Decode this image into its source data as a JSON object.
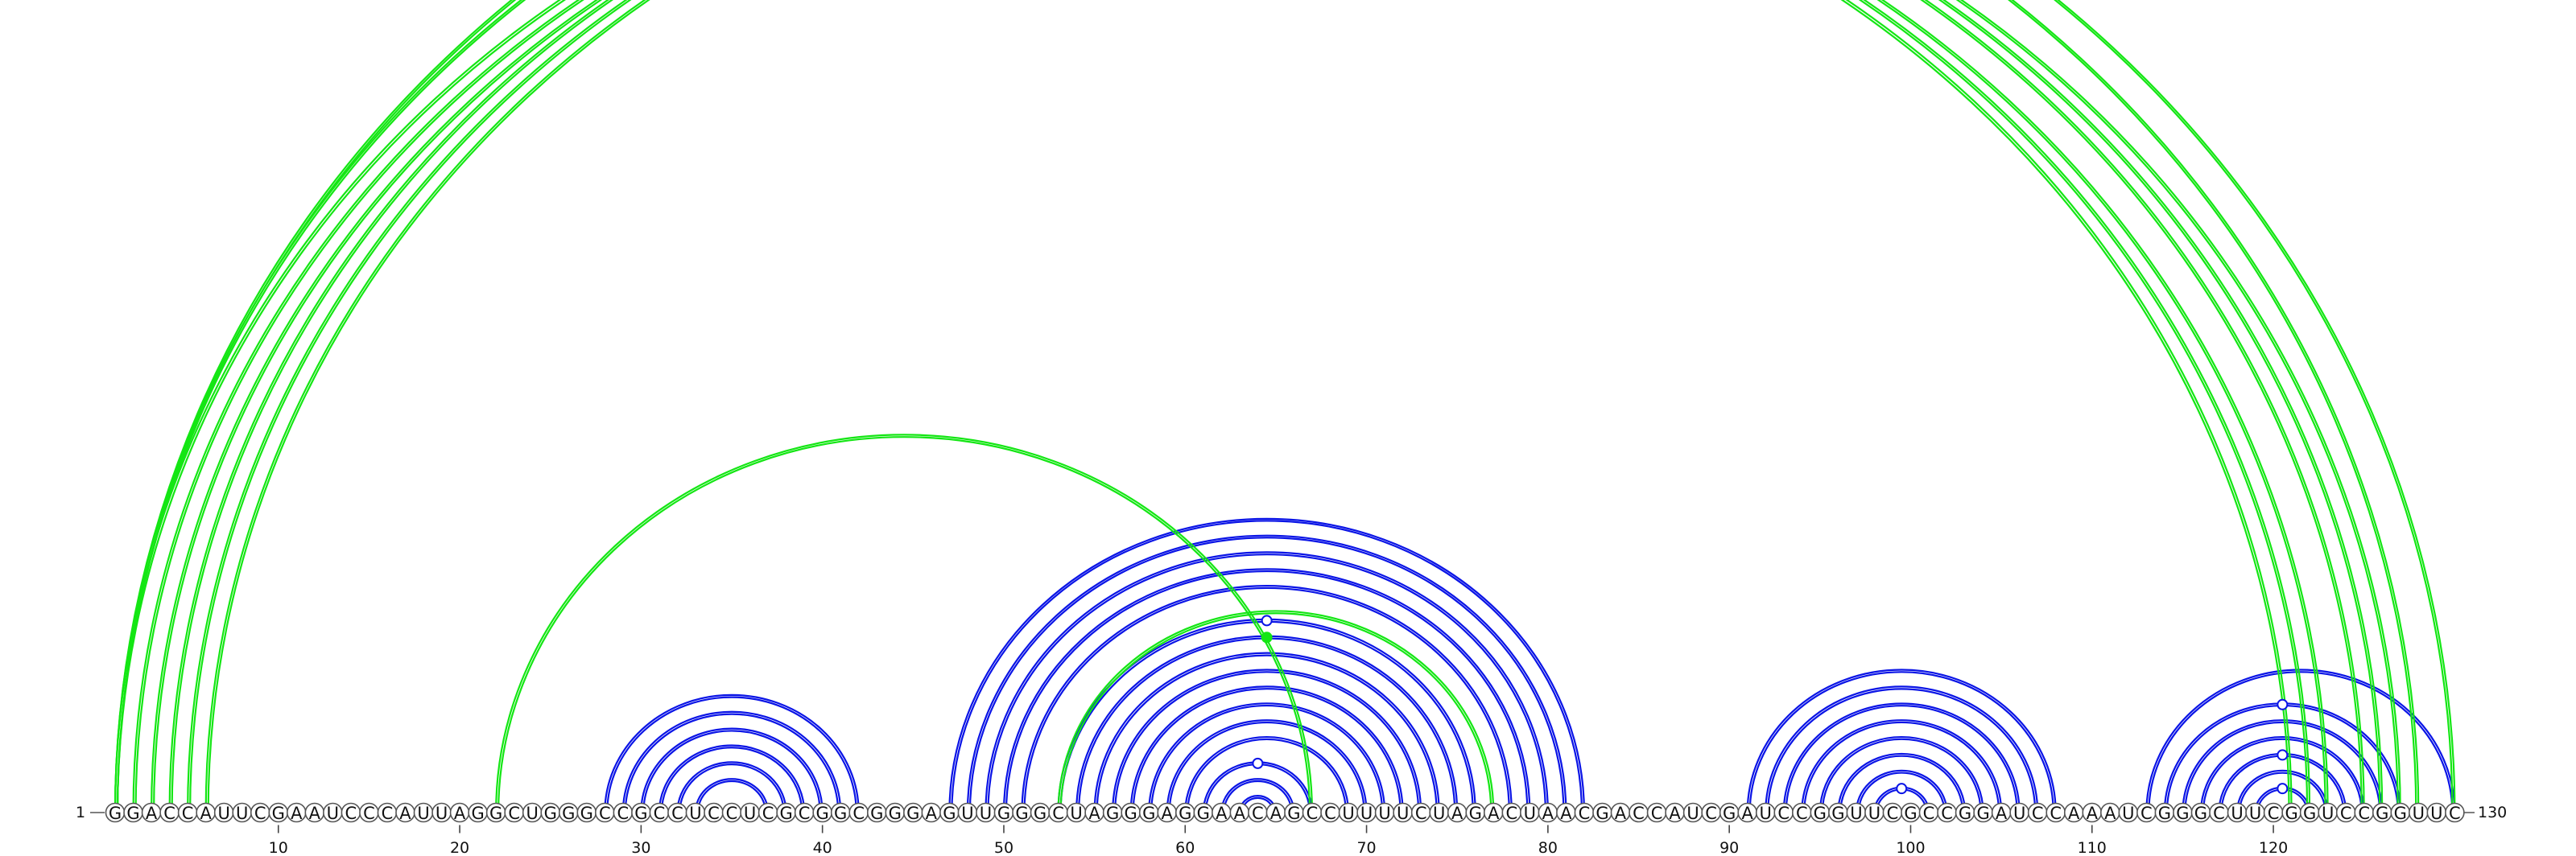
{
  "sequence": "GGACCAUUCGAAUCCCAUUAGGCUGGGCCGCCUCCUCGCGGCGGGAGUUGGGCUAGGGAGGAACAGCCUUUUCUAGACUAACGACCAUCGAUCCGGUUCGCCGGAUCCAAAUCGGGCUUCGGUCCGGUUC",
  "start_label": "1",
  "end_label": "130",
  "ticks": [
    10,
    20,
    30,
    40,
    50,
    60,
    70,
    80,
    90,
    100,
    110,
    120
  ],
  "colors": {
    "secondary": "#0a14e6",
    "tertiary": "#14e614"
  },
  "chart_data": {
    "type": "arc-diagram",
    "title": "",
    "length": 130,
    "pairs": [
      {
        "i": 28,
        "j": 42,
        "kind": "secondary"
      },
      {
        "i": 29,
        "j": 41,
        "kind": "secondary"
      },
      {
        "i": 30,
        "j": 40,
        "kind": "secondary"
      },
      {
        "i": 31,
        "j": 39,
        "kind": "secondary"
      },
      {
        "i": 32,
        "j": 38,
        "kind": "secondary"
      },
      {
        "i": 33,
        "j": 37,
        "kind": "secondary"
      },
      {
        "i": 47,
        "j": 82,
        "kind": "secondary"
      },
      {
        "i": 48,
        "j": 81,
        "kind": "secondary"
      },
      {
        "i": 49,
        "j": 80,
        "kind": "secondary"
      },
      {
        "i": 50,
        "j": 79,
        "kind": "secondary"
      },
      {
        "i": 51,
        "j": 78,
        "kind": "secondary"
      },
      {
        "i": 53,
        "j": 76,
        "kind": "secondary"
      },
      {
        "i": 54,
        "j": 75,
        "kind": "secondary"
      },
      {
        "i": 55,
        "j": 74,
        "kind": "secondary"
      },
      {
        "i": 56,
        "j": 73,
        "kind": "secondary"
      },
      {
        "i": 57,
        "j": 72,
        "kind": "secondary"
      },
      {
        "i": 58,
        "j": 71,
        "kind": "secondary"
      },
      {
        "i": 59,
        "j": 70,
        "kind": "secondary"
      },
      {
        "i": 60,
        "j": 69,
        "kind": "secondary"
      },
      {
        "i": 61,
        "j": 67,
        "kind": "secondary"
      },
      {
        "i": 62,
        "j": 66,
        "kind": "secondary"
      },
      {
        "i": 63,
        "j": 65,
        "kind": "secondary"
      },
      {
        "i": 91,
        "j": 108,
        "kind": "secondary"
      },
      {
        "i": 92,
        "j": 107,
        "kind": "secondary"
      },
      {
        "i": 93,
        "j": 106,
        "kind": "secondary"
      },
      {
        "i": 94,
        "j": 105,
        "kind": "secondary"
      },
      {
        "i": 95,
        "j": 104,
        "kind": "secondary"
      },
      {
        "i": 96,
        "j": 103,
        "kind": "secondary"
      },
      {
        "i": 97,
        "j": 102,
        "kind": "secondary"
      },
      {
        "i": 98,
        "j": 101,
        "kind": "secondary"
      },
      {
        "i": 113,
        "j": 130,
        "kind": "secondary"
      },
      {
        "i": 114,
        "j": 127,
        "kind": "secondary"
      },
      {
        "i": 115,
        "j": 126,
        "kind": "secondary"
      },
      {
        "i": 116,
        "j": 125,
        "kind": "secondary"
      },
      {
        "i": 117,
        "j": 124,
        "kind": "secondary"
      },
      {
        "i": 118,
        "j": 123,
        "kind": "secondary"
      },
      {
        "i": 119,
        "j": 122,
        "kind": "secondary"
      },
      {
        "i": 1,
        "j": 121,
        "kind": "tertiary"
      },
      {
        "i": 2,
        "j": 122,
        "kind": "tertiary"
      },
      {
        "i": 3,
        "j": 123,
        "kind": "tertiary"
      },
      {
        "i": 4,
        "j": 125,
        "kind": "tertiary"
      },
      {
        "i": 5,
        "j": 126,
        "kind": "tertiary"
      },
      {
        "i": 6,
        "j": 127,
        "kind": "tertiary"
      },
      {
        "i": 1,
        "j": 128,
        "kind": "tertiary"
      },
      {
        "i": 1,
        "j": 130,
        "kind": "tertiary"
      },
      {
        "i": 22,
        "j": 67,
        "kind": "tertiary"
      },
      {
        "i": 53,
        "j": 77,
        "kind": "tertiary"
      }
    ],
    "markers": [
      {
        "i": 1,
        "j": 130,
        "kind": "tertiary",
        "filled": false
      },
      {
        "i": 54,
        "j": 75,
        "kind": "tertiary",
        "filled": true
      },
      {
        "i": 53,
        "j": 76,
        "kind": "secondary",
        "filled": false
      },
      {
        "i": 61,
        "j": 67,
        "kind": "secondary",
        "filled": false
      },
      {
        "i": 98,
        "j": 101,
        "kind": "secondary",
        "filled": false
      },
      {
        "i": 114,
        "j": 127,
        "kind": "secondary",
        "filled": false
      },
      {
        "i": 117,
        "j": 124,
        "kind": "secondary",
        "filled": false
      },
      {
        "i": 119,
        "j": 122,
        "kind": "secondary",
        "filled": false
      }
    ]
  }
}
